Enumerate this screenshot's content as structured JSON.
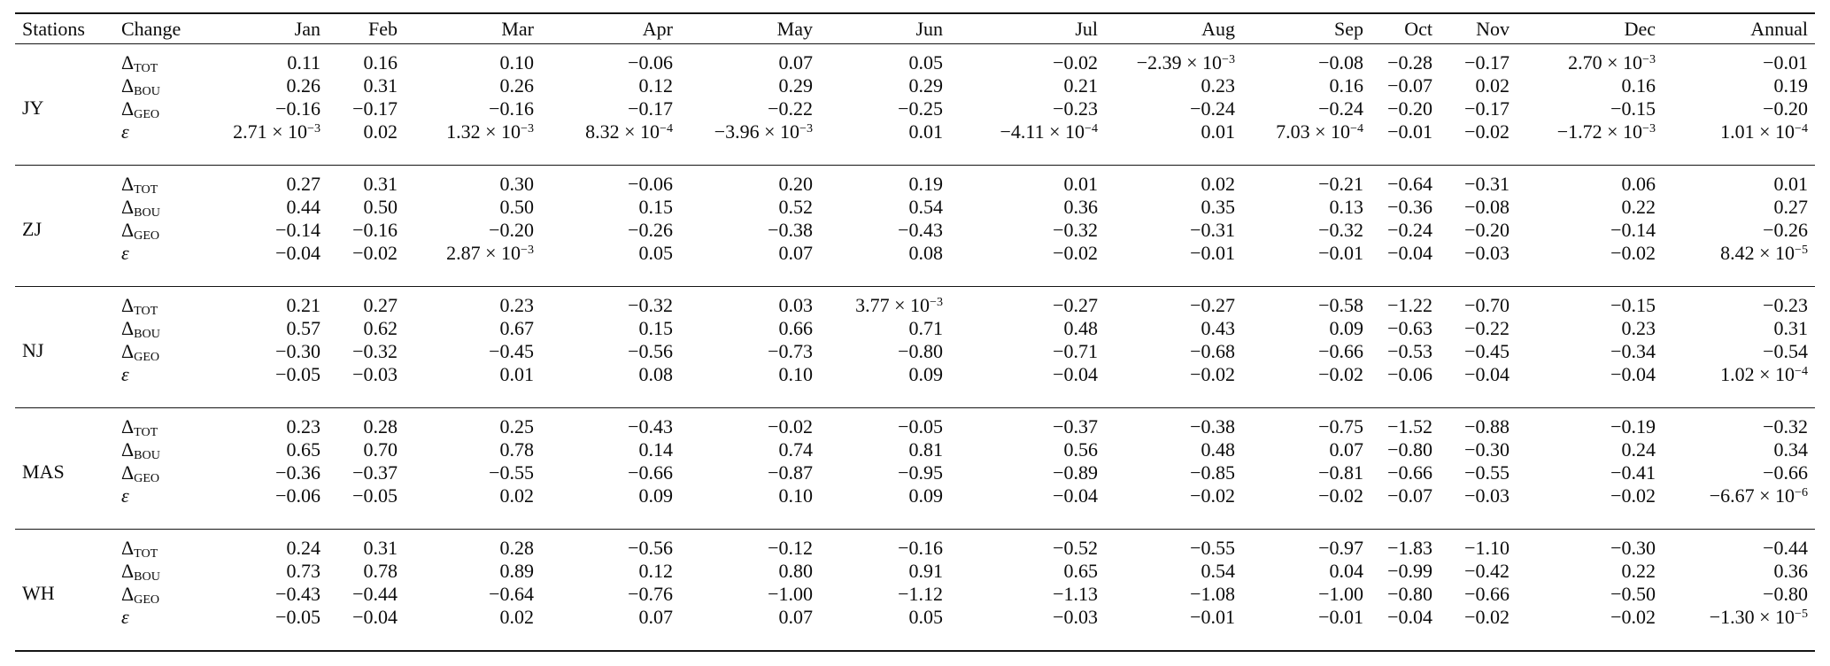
{
  "table": {
    "headers": [
      "Stations",
      "Change",
      "Jan",
      "Feb",
      "Mar",
      "Apr",
      "May",
      "Jun",
      "Jul",
      "Aug",
      "Sep",
      "Oct",
      "Nov",
      "Dec",
      "Annual"
    ],
    "groups": [
      {
        "station": "JY",
        "rows": [
          {
            "change": "Δ_TOT",
            "values": [
              "0.11",
              "0.16",
              "0.10",
              "−0.06",
              "0.07",
              "0.05",
              "−0.02",
              "−2.39 × 10^−3",
              "−0.08",
              "−0.28",
              "−0.17",
              "2.70 × 10^−3",
              "−0.01"
            ]
          },
          {
            "change": "Δ_BOU",
            "values": [
              "0.26",
              "0.31",
              "0.26",
              "0.12",
              "0.29",
              "0.29",
              "0.21",
              "0.23",
              "0.16",
              "−0.07",
              "0.02",
              "0.16",
              "0.19"
            ]
          },
          {
            "change": "Δ_GEO",
            "values": [
              "−0.16",
              "−0.17",
              "−0.16",
              "−0.17",
              "−0.22",
              "−0.25",
              "−0.23",
              "−0.24",
              "−0.24",
              "−0.20",
              "−0.17",
              "−0.15",
              "−0.20"
            ]
          },
          {
            "change": "ε",
            "values": [
              "2.71 × 10^−3",
              "0.02",
              "1.32 × 10^−3",
              "8.32 × 10^−4",
              "−3.96 × 10^−3",
              "0.01",
              "−4.11 × 10^−4",
              "0.01",
              "7.03 × 10^−4",
              "−0.01",
              "−0.02",
              "−1.72 × 10^−3",
              "1.01 × 10^−4"
            ]
          }
        ]
      },
      {
        "station": "ZJ",
        "rows": [
          {
            "change": "Δ_TOT",
            "values": [
              "0.27",
              "0.31",
              "0.30",
              "−0.06",
              "0.20",
              "0.19",
              "0.01",
              "0.02",
              "−0.21",
              "−0.64",
              "−0.31",
              "0.06",
              "0.01"
            ]
          },
          {
            "change": "Δ_BOU",
            "values": [
              "0.44",
              "0.50",
              "0.50",
              "0.15",
              "0.52",
              "0.54",
              "0.36",
              "0.35",
              "0.13",
              "−0.36",
              "−0.08",
              "0.22",
              "0.27"
            ]
          },
          {
            "change": "Δ_GEO",
            "values": [
              "−0.14",
              "−0.16",
              "−0.20",
              "−0.26",
              "−0.38",
              "−0.43",
              "−0.32",
              "−0.31",
              "−0.32",
              "−0.24",
              "−0.20",
              "−0.14",
              "−0.26"
            ]
          },
          {
            "change": "ε",
            "values": [
              "−0.04",
              "−0.02",
              "2.87 × 10^−3",
              "0.05",
              "0.07",
              "0.08",
              "−0.02",
              "−0.01",
              "−0.01",
              "−0.04",
              "−0.03",
              "−0.02",
              "8.42 × 10^−5"
            ]
          }
        ]
      },
      {
        "station": "NJ",
        "rows": [
          {
            "change": "Δ_TOT",
            "values": [
              "0.21",
              "0.27",
              "0.23",
              "−0.32",
              "0.03",
              "3.77 × 10^−3",
              "−0.27",
              "−0.27",
              "−0.58",
              "−1.22",
              "−0.70",
              "−0.15",
              "−0.23"
            ]
          },
          {
            "change": "Δ_BOU",
            "values": [
              "0.57",
              "0.62",
              "0.67",
              "0.15",
              "0.66",
              "0.71",
              "0.48",
              "0.43",
              "0.09",
              "−0.63",
              "−0.22",
              "0.23",
              "0.31"
            ]
          },
          {
            "change": "Δ_GEO",
            "values": [
              "−0.30",
              "−0.32",
              "−0.45",
              "−0.56",
              "−0.73",
              "−0.80",
              "−0.71",
              "−0.68",
              "−0.66",
              "−0.53",
              "−0.45",
              "−0.34",
              "−0.54"
            ]
          },
          {
            "change": "ε",
            "values": [
              "−0.05",
              "−0.03",
              "0.01",
              "0.08",
              "0.10",
              "0.09",
              "−0.04",
              "−0.02",
              "−0.02",
              "−0.06",
              "−0.04",
              "−0.04",
              "1.02 × 10^−4"
            ]
          }
        ]
      },
      {
        "station": "MAS",
        "rows": [
          {
            "change": "Δ_TOT",
            "values": [
              "0.23",
              "0.28",
              "0.25",
              "−0.43",
              "−0.02",
              "−0.05",
              "−0.37",
              "−0.38",
              "−0.75",
              "−1.52",
              "−0.88",
              "−0.19",
              "−0.32"
            ]
          },
          {
            "change": "Δ_BOU",
            "values": [
              "0.65",
              "0.70",
              "0.78",
              "0.14",
              "0.74",
              "0.81",
              "0.56",
              "0.48",
              "0.07",
              "−0.80",
              "−0.30",
              "0.24",
              "0.34"
            ]
          },
          {
            "change": "Δ_GEO",
            "values": [
              "−0.36",
              "−0.37",
              "−0.55",
              "−0.66",
              "−0.87",
              "−0.95",
              "−0.89",
              "−0.85",
              "−0.81",
              "−0.66",
              "−0.55",
              "−0.41",
              "−0.66"
            ]
          },
          {
            "change": "ε",
            "values": [
              "−0.06",
              "−0.05",
              "0.02",
              "0.09",
              "0.10",
              "0.09",
              "−0.04",
              "−0.02",
              "−0.02",
              "−0.07",
              "−0.03",
              "−0.02",
              "−6.67 × 10^−6"
            ]
          }
        ]
      },
      {
        "station": "WH",
        "rows": [
          {
            "change": "Δ_TOT",
            "values": [
              "0.24",
              "0.31",
              "0.28",
              "−0.56",
              "−0.12",
              "−0.16",
              "−0.52",
              "−0.55",
              "−0.97",
              "−1.83",
              "−1.10",
              "−0.30",
              "−0.44"
            ]
          },
          {
            "change": "Δ_BOU",
            "values": [
              "0.73",
              "0.78",
              "0.89",
              "0.12",
              "0.80",
              "0.91",
              "0.65",
              "0.54",
              "0.04",
              "−0.99",
              "−0.42",
              "0.22",
              "0.36"
            ]
          },
          {
            "change": "Δ_GEO",
            "values": [
              "−0.43",
              "−0.44",
              "−0.64",
              "−0.76",
              "−1.00",
              "−1.12",
              "−1.13",
              "−1.08",
              "−1.00",
              "−0.80",
              "−0.66",
              "−0.50",
              "−0.80"
            ]
          },
          {
            "change": "ε",
            "values": [
              "−0.05",
              "−0.04",
              "0.02",
              "0.07",
              "0.07",
              "0.05",
              "−0.03",
              "−0.01",
              "−0.01",
              "−0.04",
              "−0.02",
              "−0.02",
              "−1.30 × 10^−5"
            ]
          }
        ]
      }
    ]
  }
}
